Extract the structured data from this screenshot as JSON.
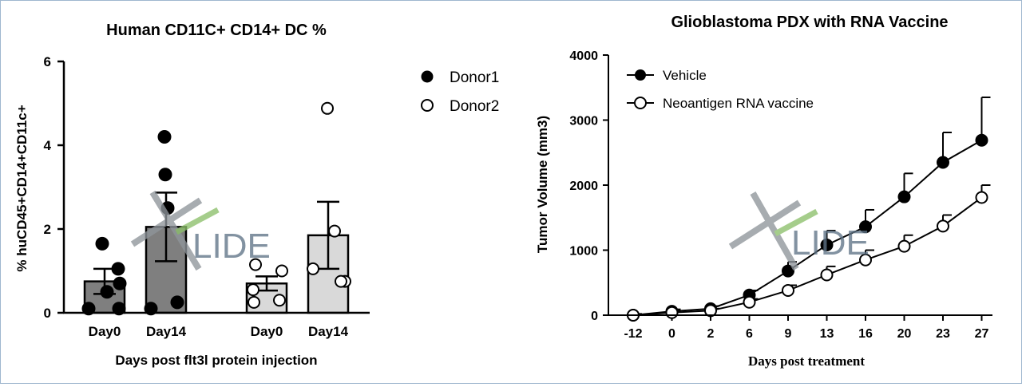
{
  "watermark": {
    "text": "LIDE",
    "colors": {
      "x_gray": "#8f959b",
      "x_green": "#8cc06b",
      "text": "#5f7487"
    }
  },
  "chart_data": [
    {
      "type": "bar",
      "title": "Human CD11C+ CD14+ DC %",
      "xlabel": "Days post flt3l protein injection",
      "ylabel": "% huCD45+CD14+CD11c+",
      "ylim": [
        0,
        6
      ],
      "yticks": [
        "0",
        "2",
        "4",
        "6"
      ],
      "grid": false,
      "legend_position": "right",
      "categories": [
        "Day0",
        "Day14",
        "Day0",
        "Day14"
      ],
      "groups": [
        {
          "label": "Day0",
          "mean": 0.75,
          "sem": 0.3,
          "fill": "#7f7f7f",
          "points": [
            {
              "donor": "Donor1",
              "value": 1.65
            },
            {
              "donor": "Donor1",
              "value": 0.5
            },
            {
              "donor": "Donor1",
              "value": 0.7
            },
            {
              "donor": "Donor1",
              "value": 1.05
            },
            {
              "donor": "Donor1",
              "value": 0.1
            },
            {
              "donor": "Donor1",
              "value": 0.1
            }
          ]
        },
        {
          "label": "Day14",
          "mean": 2.05,
          "sem": 0.82,
          "fill": "#7f7f7f",
          "points": [
            {
              "donor": "Donor1",
              "value": 4.2
            },
            {
              "donor": "Donor1",
              "value": 3.3
            },
            {
              "donor": "Donor1",
              "value": 0.25
            },
            {
              "donor": "Donor1",
              "value": 0.1
            },
            {
              "donor": "Donor1",
              "value": 2.5
            }
          ]
        },
        {
          "label": "Day0",
          "mean": 0.7,
          "sem": 0.17,
          "fill": "#d9d9d9",
          "points": [
            {
              "donor": "Donor2",
              "value": 1.15
            },
            {
              "donor": "Donor2",
              "value": 1.0
            },
            {
              "donor": "Donor2",
              "value": 0.55
            },
            {
              "donor": "Donor2",
              "value": 0.3
            },
            {
              "donor": "Donor2",
              "value": 0.25
            }
          ]
        },
        {
          "label": "Day14",
          "mean": 1.85,
          "sem": 0.8,
          "fill": "#d9d9d9",
          "points": [
            {
              "donor": "Donor2",
              "value": 4.88
            },
            {
              "donor": "Donor2",
              "value": 1.95
            },
            {
              "donor": "Donor2",
              "value": 1.05
            },
            {
              "donor": "Donor2",
              "value": 0.75
            },
            {
              "donor": "Donor2",
              "value": 0.75
            }
          ]
        }
      ],
      "legend": [
        {
          "label": "Donor1",
          "marker": "filled-circle"
        },
        {
          "label": "Donor2",
          "marker": "open-circle"
        }
      ]
    },
    {
      "type": "line",
      "title": "Glioblastoma PDX with RNA Vaccine",
      "xlabel": "Days post treatment",
      "ylabel": "Tumor Volume (mm3)",
      "ylim": [
        0,
        4000
      ],
      "yticks": [
        "0",
        "1000",
        "2000",
        "3000",
        "4000"
      ],
      "categories": [
        "-12",
        "0",
        "2",
        "6",
        "9",
        "13",
        "16",
        "20",
        "23",
        "27"
      ],
      "grid": false,
      "legend_position": "top-left",
      "series": [
        {
          "name": "Vehicle",
          "marker": "filled-circle",
          "values": [
            0,
            60,
            100,
            310,
            680,
            1080,
            1360,
            1820,
            2350,
            2690
          ],
          "errors": [
            20,
            30,
            40,
            70,
            140,
            220,
            260,
            360,
            460,
            660
          ]
        },
        {
          "name": "Neoantigen RNA vaccine",
          "marker": "open-circle",
          "values": [
            0,
            40,
            70,
            200,
            380,
            620,
            850,
            1060,
            1370,
            1810
          ],
          "errors": [
            15,
            25,
            30,
            50,
            80,
            130,
            150,
            170,
            170,
            190
          ]
        }
      ]
    }
  ]
}
